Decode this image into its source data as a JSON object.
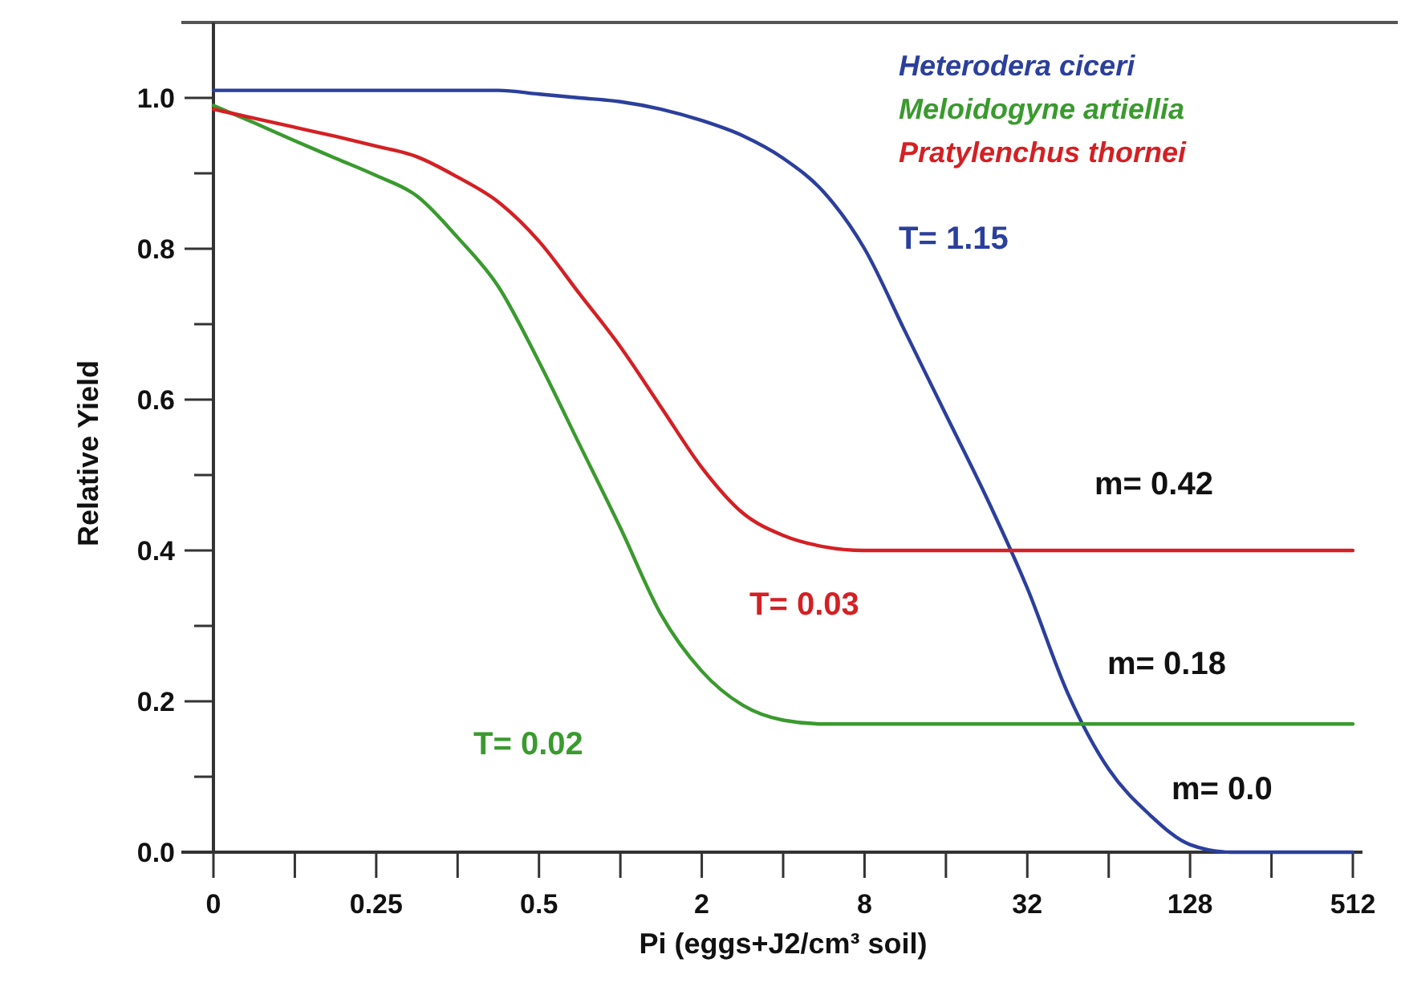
{
  "chart_data": {
    "type": "line",
    "xlabel": "Pi (eggs+J2/cm³ soil)",
    "ylabel": "Relative Yield",
    "categories": [
      "0",
      null,
      null,
      null,
      "0.25",
      null,
      null,
      null,
      "0.5",
      null,
      null,
      null,
      "2",
      null,
      null,
      null,
      "8",
      null,
      null,
      null,
      "32",
      null,
      null,
      null,
      "128",
      null,
      null,
      null,
      "512"
    ],
    "ylim": [
      0,
      1.1
    ],
    "yticks": [
      {
        "value": 0,
        "label": "0.0"
      },
      {
        "value": 0.1,
        "label": null
      },
      0.2,
      {
        "value": 0.3,
        "label": null
      },
      0.4,
      {
        "value": 0.5,
        "label": null
      },
      0.6,
      {
        "value": 0.7,
        "label": null
      },
      0.8,
      {
        "value": 0.9,
        "label": null
      },
      {
        "value": 1,
        "label": "1.0"
      }
    ],
    "grid": false,
    "legend": "top right",
    "line_style": "solid",
    "marker": "none",
    "series": [
      {
        "name": "Heterodera ciceri",
        "color": "#2b3f9c",
        "values": [
          1.01,
          1.01,
          1.01,
          1.01,
          1.01,
          1.01,
          1.01,
          1.01,
          1.005,
          1.0,
          0.995,
          0.985,
          0.97,
          0.95,
          0.92,
          0.875,
          0.8,
          0.69,
          0.58,
          0.47,
          0.35,
          0.21,
          0.11,
          0.05,
          0.01,
          0,
          0,
          0,
          0
        ]
      },
      {
        "name": "Meloidogyne artiellia",
        "color": "#3a9a2e",
        "values": [
          0.99,
          0.967,
          0.943,
          0.92,
          0.897,
          0.87,
          0.815,
          0.75,
          0.65,
          0.54,
          0.43,
          0.315,
          0.24,
          0.195,
          0.175,
          0.17,
          0.17,
          0.17,
          0.17,
          0.17,
          0.17,
          0.17,
          0.17,
          0.17,
          0.17,
          0.17,
          0.17,
          0.17,
          0.17
        ]
      },
      {
        "name": "Pratylenchus thornei",
        "color": "#d42024",
        "values": [
          0.985,
          0.973,
          0.961,
          0.949,
          0.936,
          0.922,
          0.895,
          0.862,
          0.81,
          0.74,
          0.67,
          0.59,
          0.51,
          0.45,
          0.42,
          0.405,
          0.4,
          0.4,
          0.4,
          0.4,
          0.4,
          0.4,
          0.4,
          0.4,
          0.4,
          0.4,
          0.4,
          0.4,
          0.4
        ]
      }
    ],
    "annotations": [
      "T= 1.15",
      "T= 0.02",
      "T= 0.03",
      "m= 0.42",
      "m= 0.18",
      "m= 0.0"
    ]
  }
}
